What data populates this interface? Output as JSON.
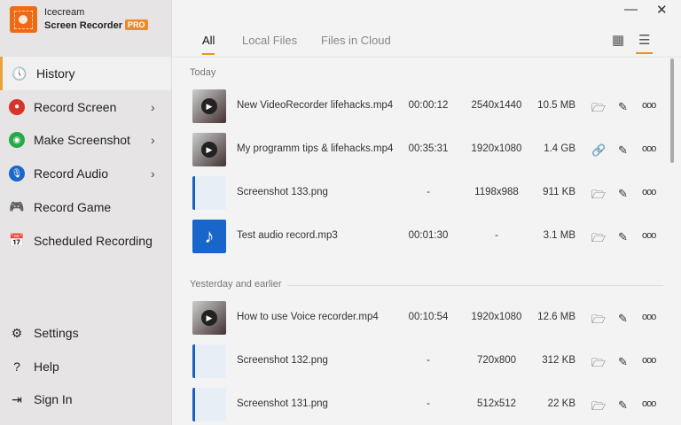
{
  "app": {
    "name_line1": "Icecream",
    "name_line2": "Screen Recorder",
    "badge": "PRO",
    "accent": "#ee6b16"
  },
  "sidebar": {
    "items": [
      {
        "label": "History",
        "icon": "clock-icon",
        "selected": true
      },
      {
        "label": "Record Screen",
        "icon": "record-icon",
        "chevron": true
      },
      {
        "label": "Make Screenshot",
        "icon": "camera-icon",
        "chevron": true
      },
      {
        "label": "Record Audio",
        "icon": "microphone-icon",
        "chevron": true
      },
      {
        "label": "Record Game",
        "icon": "gamepad-icon"
      },
      {
        "label": "Scheduled Recording",
        "icon": "calendar-icon"
      }
    ],
    "bottom": [
      {
        "label": "Settings",
        "icon": "gear-icon"
      },
      {
        "label": "Help",
        "icon": "help-icon"
      },
      {
        "label": "Sign In",
        "icon": "sign-in-icon"
      }
    ]
  },
  "tabs": [
    {
      "label": "All",
      "active": true
    },
    {
      "label": "Local Files"
    },
    {
      "label": "Files in Cloud"
    }
  ],
  "groups": [
    {
      "title": "Today",
      "files": [
        {
          "name": "New VideoRecorder lifehacks.mp4",
          "duration": "00:00:12",
          "resolution": "2540x1440",
          "size": "10.5 MB",
          "type": "video",
          "action": "folder"
        },
        {
          "name": "My programm tips & lifehacks.mp4",
          "duration": "00:35:31",
          "resolution": "1920x1080",
          "size": "1.4 GB",
          "type": "video",
          "action": "link"
        },
        {
          "name": "Screenshot 133.png",
          "duration": "-",
          "resolution": "1198x988",
          "size": "911 KB",
          "type": "image",
          "action": "folder"
        },
        {
          "name": "Test audio record.mp3",
          "duration": "00:01:30",
          "resolution": "-",
          "size": "3.1 MB",
          "type": "audio",
          "action": "folder"
        }
      ]
    },
    {
      "title": "Yesterday and earlier",
      "files": [
        {
          "name": "How to use Voice recorder.mp4",
          "duration": "00:10:54",
          "resolution": "1920x1080",
          "size": "12.6 MB",
          "type": "video",
          "action": "folder"
        },
        {
          "name": "Screenshot 132.png",
          "duration": "-",
          "resolution": "720x800",
          "size": "312 KB",
          "type": "image",
          "action": "folder"
        },
        {
          "name": "Screenshot 131.png",
          "duration": "-",
          "resolution": "512x512",
          "size": "22 KB",
          "type": "image",
          "action": "folder"
        }
      ]
    }
  ]
}
